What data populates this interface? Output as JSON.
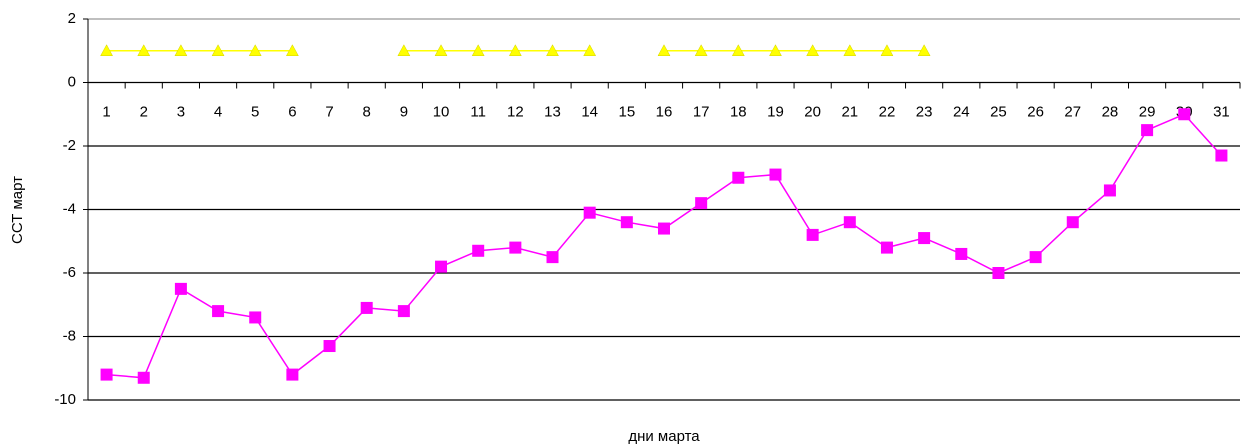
{
  "chart_data": {
    "type": "line",
    "ylabel": "ССТ март",
    "xlabel": "дни марта",
    "categories": [
      "1",
      "2",
      "3",
      "4",
      "5",
      "6",
      "7",
      "8",
      "9",
      "10",
      "11",
      "12",
      "13",
      "14",
      "15",
      "16",
      "17",
      "18",
      "19",
      "20",
      "21",
      "22",
      "23",
      "24",
      "25",
      "26",
      "27",
      "28",
      "29",
      "30",
      "31"
    ],
    "series": [
      {
        "color": "#ff00ff",
        "marker": "square",
        "values": [
          -9.2,
          -9.3,
          -6.5,
          -7.2,
          -7.4,
          -9.2,
          -8.3,
          -7.1,
          -7.2,
          -5.8,
          -5.3,
          -5.2,
          -5.5,
          -4.1,
          -4.4,
          -4.6,
          -3.8,
          -3.0,
          -2.9,
          -4.8,
          -4.4,
          -5.2,
          -4.9,
          -5.4,
          -6.0,
          -5.5,
          -4.4,
          -3.4,
          -1.5,
          -1.0,
          -2.3
        ]
      },
      {
        "color": "#ffff00",
        "marker": "triangle",
        "values": [
          1,
          1,
          1,
          1,
          1,
          1,
          null,
          null,
          1,
          1,
          1,
          1,
          1,
          1,
          null,
          1,
          1,
          1,
          1,
          1,
          1,
          1,
          1,
          null,
          null,
          null,
          null,
          null,
          null,
          null,
          null
        ]
      }
    ],
    "ylim": [
      -10,
      2
    ],
    "yticks": [
      -10,
      -8,
      -6,
      -4,
      -2,
      0,
      2
    ],
    "grid": true
  }
}
